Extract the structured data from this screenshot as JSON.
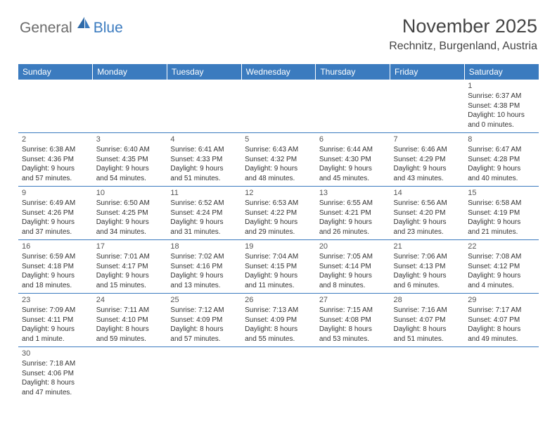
{
  "logo": {
    "general": "General",
    "blue": "Blue"
  },
  "title": "November 2025",
  "location": "Rechnitz, Burgenland, Austria",
  "colors": {
    "headerBg": "#3b7bbf",
    "headerText": "#ffffff",
    "border": "#3b7bbf"
  },
  "weekdays": [
    "Sunday",
    "Monday",
    "Tuesday",
    "Wednesday",
    "Thursday",
    "Friday",
    "Saturday"
  ],
  "weeks": [
    [
      null,
      null,
      null,
      null,
      null,
      null,
      {
        "n": "1",
        "sr": "Sunrise: 6:37 AM",
        "ss": "Sunset: 4:38 PM",
        "d1": "Daylight: 10 hours",
        "d2": "and 0 minutes."
      }
    ],
    [
      {
        "n": "2",
        "sr": "Sunrise: 6:38 AM",
        "ss": "Sunset: 4:36 PM",
        "d1": "Daylight: 9 hours",
        "d2": "and 57 minutes."
      },
      {
        "n": "3",
        "sr": "Sunrise: 6:40 AM",
        "ss": "Sunset: 4:35 PM",
        "d1": "Daylight: 9 hours",
        "d2": "and 54 minutes."
      },
      {
        "n": "4",
        "sr": "Sunrise: 6:41 AM",
        "ss": "Sunset: 4:33 PM",
        "d1": "Daylight: 9 hours",
        "d2": "and 51 minutes."
      },
      {
        "n": "5",
        "sr": "Sunrise: 6:43 AM",
        "ss": "Sunset: 4:32 PM",
        "d1": "Daylight: 9 hours",
        "d2": "and 48 minutes."
      },
      {
        "n": "6",
        "sr": "Sunrise: 6:44 AM",
        "ss": "Sunset: 4:30 PM",
        "d1": "Daylight: 9 hours",
        "d2": "and 45 minutes."
      },
      {
        "n": "7",
        "sr": "Sunrise: 6:46 AM",
        "ss": "Sunset: 4:29 PM",
        "d1": "Daylight: 9 hours",
        "d2": "and 43 minutes."
      },
      {
        "n": "8",
        "sr": "Sunrise: 6:47 AM",
        "ss": "Sunset: 4:28 PM",
        "d1": "Daylight: 9 hours",
        "d2": "and 40 minutes."
      }
    ],
    [
      {
        "n": "9",
        "sr": "Sunrise: 6:49 AM",
        "ss": "Sunset: 4:26 PM",
        "d1": "Daylight: 9 hours",
        "d2": "and 37 minutes."
      },
      {
        "n": "10",
        "sr": "Sunrise: 6:50 AM",
        "ss": "Sunset: 4:25 PM",
        "d1": "Daylight: 9 hours",
        "d2": "and 34 minutes."
      },
      {
        "n": "11",
        "sr": "Sunrise: 6:52 AM",
        "ss": "Sunset: 4:24 PM",
        "d1": "Daylight: 9 hours",
        "d2": "and 31 minutes."
      },
      {
        "n": "12",
        "sr": "Sunrise: 6:53 AM",
        "ss": "Sunset: 4:22 PM",
        "d1": "Daylight: 9 hours",
        "d2": "and 29 minutes."
      },
      {
        "n": "13",
        "sr": "Sunrise: 6:55 AM",
        "ss": "Sunset: 4:21 PM",
        "d1": "Daylight: 9 hours",
        "d2": "and 26 minutes."
      },
      {
        "n": "14",
        "sr": "Sunrise: 6:56 AM",
        "ss": "Sunset: 4:20 PM",
        "d1": "Daylight: 9 hours",
        "d2": "and 23 minutes."
      },
      {
        "n": "15",
        "sr": "Sunrise: 6:58 AM",
        "ss": "Sunset: 4:19 PM",
        "d1": "Daylight: 9 hours",
        "d2": "and 21 minutes."
      }
    ],
    [
      {
        "n": "16",
        "sr": "Sunrise: 6:59 AM",
        "ss": "Sunset: 4:18 PM",
        "d1": "Daylight: 9 hours",
        "d2": "and 18 minutes."
      },
      {
        "n": "17",
        "sr": "Sunrise: 7:01 AM",
        "ss": "Sunset: 4:17 PM",
        "d1": "Daylight: 9 hours",
        "d2": "and 15 minutes."
      },
      {
        "n": "18",
        "sr": "Sunrise: 7:02 AM",
        "ss": "Sunset: 4:16 PM",
        "d1": "Daylight: 9 hours",
        "d2": "and 13 minutes."
      },
      {
        "n": "19",
        "sr": "Sunrise: 7:04 AM",
        "ss": "Sunset: 4:15 PM",
        "d1": "Daylight: 9 hours",
        "d2": "and 11 minutes."
      },
      {
        "n": "20",
        "sr": "Sunrise: 7:05 AM",
        "ss": "Sunset: 4:14 PM",
        "d1": "Daylight: 9 hours",
        "d2": "and 8 minutes."
      },
      {
        "n": "21",
        "sr": "Sunrise: 7:06 AM",
        "ss": "Sunset: 4:13 PM",
        "d1": "Daylight: 9 hours",
        "d2": "and 6 minutes."
      },
      {
        "n": "22",
        "sr": "Sunrise: 7:08 AM",
        "ss": "Sunset: 4:12 PM",
        "d1": "Daylight: 9 hours",
        "d2": "and 4 minutes."
      }
    ],
    [
      {
        "n": "23",
        "sr": "Sunrise: 7:09 AM",
        "ss": "Sunset: 4:11 PM",
        "d1": "Daylight: 9 hours",
        "d2": "and 1 minute."
      },
      {
        "n": "24",
        "sr": "Sunrise: 7:11 AM",
        "ss": "Sunset: 4:10 PM",
        "d1": "Daylight: 8 hours",
        "d2": "and 59 minutes."
      },
      {
        "n": "25",
        "sr": "Sunrise: 7:12 AM",
        "ss": "Sunset: 4:09 PM",
        "d1": "Daylight: 8 hours",
        "d2": "and 57 minutes."
      },
      {
        "n": "26",
        "sr": "Sunrise: 7:13 AM",
        "ss": "Sunset: 4:09 PM",
        "d1": "Daylight: 8 hours",
        "d2": "and 55 minutes."
      },
      {
        "n": "27",
        "sr": "Sunrise: 7:15 AM",
        "ss": "Sunset: 4:08 PM",
        "d1": "Daylight: 8 hours",
        "d2": "and 53 minutes."
      },
      {
        "n": "28",
        "sr": "Sunrise: 7:16 AM",
        "ss": "Sunset: 4:07 PM",
        "d1": "Daylight: 8 hours",
        "d2": "and 51 minutes."
      },
      {
        "n": "29",
        "sr": "Sunrise: 7:17 AM",
        "ss": "Sunset: 4:07 PM",
        "d1": "Daylight: 8 hours",
        "d2": "and 49 minutes."
      }
    ],
    [
      {
        "n": "30",
        "sr": "Sunrise: 7:18 AM",
        "ss": "Sunset: 4:06 PM",
        "d1": "Daylight: 8 hours",
        "d2": "and 47 minutes."
      },
      null,
      null,
      null,
      null,
      null,
      null
    ]
  ]
}
